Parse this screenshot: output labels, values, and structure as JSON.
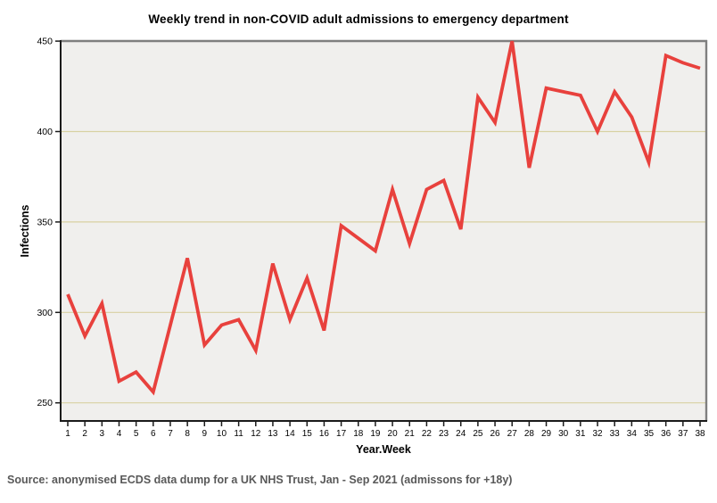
{
  "header": {
    "title": "Weekly trend in non-COVID adult admissions to emergency department"
  },
  "chart_data": {
    "type": "line",
    "title": "Weekly trend in non-COVID adult admissions to emergency department",
    "xlabel": "Year.Week",
    "ylabel": "Infections",
    "x": [
      1,
      2,
      3,
      4,
      5,
      6,
      7,
      8,
      9,
      10,
      11,
      12,
      13,
      14,
      15,
      16,
      17,
      18,
      19,
      20,
      21,
      22,
      23,
      24,
      25,
      26,
      27,
      28,
      29,
      30,
      31,
      32,
      33,
      34,
      35,
      36,
      37,
      38
    ],
    "values": [
      310,
      287,
      305,
      262,
      267,
      256,
      293,
      330,
      282,
      293,
      296,
      279,
      327,
      296,
      319,
      290,
      348,
      341,
      334,
      368,
      338,
      368,
      373,
      346,
      419,
      405,
      450,
      380,
      424,
      422,
      420,
      400,
      422,
      408,
      383,
      442,
      438,
      435
    ],
    "ylim": [
      250,
      450
    ],
    "yticks": [
      250,
      300,
      350,
      400,
      450
    ],
    "grid": "horizontal",
    "legend": "none",
    "colors": {
      "line": "#e8413d",
      "plot_background": "#f0efed",
      "gridline": "#d8d1a2",
      "frame": "#7f7f7f",
      "axis": "#1a1a1a",
      "tick_label": "#000000",
      "source_text": "#595959"
    }
  },
  "footer": {
    "source": "Source: anonymised ECDS data dump for a UK NHS Trust, Jan - Sep 2021 (admissons for +18y)"
  }
}
